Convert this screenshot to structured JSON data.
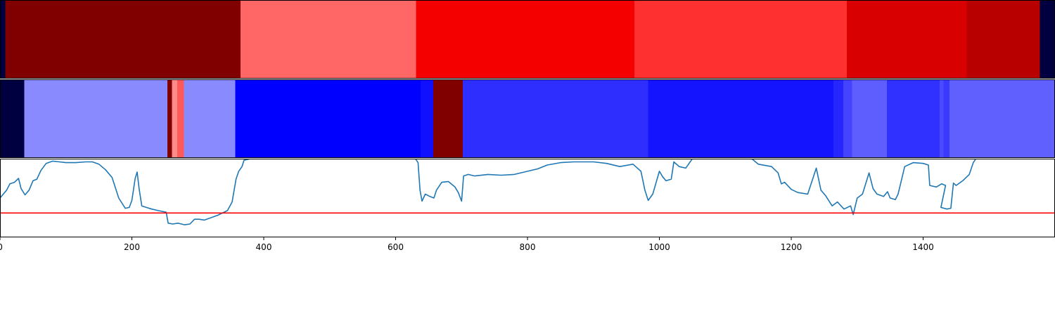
{
  "chart_data": [
    {
      "type": "heatmap",
      "xlim": [
        0,
        1600
      ],
      "segments": [
        {
          "x0": 0,
          "x1": 8,
          "color": "#000040"
        },
        {
          "x0": 8,
          "x1": 365,
          "color": "#800000"
        },
        {
          "x0": 365,
          "x1": 631,
          "color": "#ff6666"
        },
        {
          "x0": 631,
          "x1": 962,
          "color": "#f50000"
        },
        {
          "x0": 962,
          "x1": 1284,
          "color": "#ff3030"
        },
        {
          "x0": 1284,
          "x1": 1466,
          "color": "#d80000"
        },
        {
          "x0": 1466,
          "x1": 1577,
          "color": "#b80000"
        },
        {
          "x0": 1577,
          "x1": 1600,
          "color": "#000040"
        }
      ]
    },
    {
      "type": "heatmap",
      "xlim": [
        0,
        1600
      ],
      "segments": [
        {
          "x0": 0,
          "x1": 37,
          "color": "#000040"
        },
        {
          "x0": 37,
          "x1": 254,
          "color": "#8a8aff"
        },
        {
          "x0": 254,
          "x1": 261,
          "color": "#800000"
        },
        {
          "x0": 261,
          "x1": 269,
          "color": "#ff8a8a"
        },
        {
          "x0": 269,
          "x1": 279,
          "color": "#ff5a5a"
        },
        {
          "x0": 279,
          "x1": 357,
          "color": "#8a8aff"
        },
        {
          "x0": 357,
          "x1": 638,
          "color": "#0000ff"
        },
        {
          "x0": 638,
          "x1": 657,
          "color": "#1010ff"
        },
        {
          "x0": 657,
          "x1": 702,
          "color": "#800000"
        },
        {
          "x0": 702,
          "x1": 983,
          "color": "#2e2eff"
        },
        {
          "x0": 983,
          "x1": 1264,
          "color": "#1414ff"
        },
        {
          "x0": 1264,
          "x1": 1279,
          "color": "#2626ff"
        },
        {
          "x0": 1279,
          "x1": 1292,
          "color": "#4444ff"
        },
        {
          "x0": 1292,
          "x1": 1345,
          "color": "#5e5eff"
        },
        {
          "x0": 1345,
          "x1": 1425,
          "color": "#3030ff"
        },
        {
          "x0": 1425,
          "x1": 1431,
          "color": "#4a4aff"
        },
        {
          "x0": 1431,
          "x1": 1440,
          "color": "#3a3aff"
        },
        {
          "x0": 1440,
          "x1": 1600,
          "color": "#6060ff"
        }
      ]
    },
    {
      "type": "line",
      "xlim": [
        0,
        1600
      ],
      "ylim": [
        0,
        1
      ],
      "x_ticks": [
        0,
        200,
        400,
        600,
        800,
        1000,
        1200,
        1400
      ],
      "x_tick_labels": [
        "0",
        "200",
        "400",
        "600",
        "800",
        "1000",
        "1200",
        "1400"
      ],
      "threshold": {
        "y": 0.31,
        "color": "#ff0000"
      },
      "series": [
        {
          "color": "#1f77b4",
          "points": [
            [
              0,
              0.5
            ],
            [
              10,
              0.6
            ],
            [
              15,
              0.68
            ],
            [
              22,
              0.7
            ],
            [
              28,
              0.75
            ],
            [
              32,
              0.62
            ],
            [
              38,
              0.54
            ],
            [
              44,
              0.6
            ],
            [
              50,
              0.72
            ],
            [
              56,
              0.74
            ],
            [
              62,
              0.85
            ],
            [
              70,
              0.94
            ],
            [
              80,
              0.97
            ],
            [
              90,
              0.96
            ],
            [
              100,
              0.95
            ],
            [
              115,
              0.95
            ],
            [
              130,
              0.96
            ],
            [
              140,
              0.96
            ],
            [
              150,
              0.93
            ],
            [
              160,
              0.86
            ],
            [
              170,
              0.76
            ],
            [
              180,
              0.5
            ],
            [
              190,
              0.37
            ],
            [
              196,
              0.38
            ],
            [
              200,
              0.47
            ],
            [
              205,
              0.75
            ],
            [
              208,
              0.83
            ],
            [
              211,
              0.62
            ],
            [
              215,
              0.4
            ],
            [
              222,
              0.38
            ],
            [
              230,
              0.36
            ],
            [
              240,
              0.34
            ],
            [
              252,
              0.32
            ],
            [
              255,
              0.18
            ],
            [
              262,
              0.17
            ],
            [
              270,
              0.18
            ],
            [
              280,
              0.16
            ],
            [
              288,
              0.17
            ],
            [
              295,
              0.23
            ],
            [
              302,
              0.23
            ],
            [
              310,
              0.22
            ],
            [
              320,
              0.25
            ],
            [
              330,
              0.28
            ],
            [
              345,
              0.34
            ],
            [
              352,
              0.45
            ],
            [
              358,
              0.74
            ],
            [
              362,
              0.84
            ],
            [
              367,
              0.9
            ],
            [
              370,
              0.98
            ],
            [
              380,
              1.0
            ],
            [
              400,
              1.0
            ],
            [
              440,
              1.0
            ],
            [
              480,
              1.0
            ],
            [
              520,
              1.0
            ],
            [
              560,
              1.0
            ],
            [
              600,
              1.0
            ],
            [
              630,
              1.0
            ],
            [
              634,
              0.95
            ],
            [
              637,
              0.6
            ],
            [
              640,
              0.46
            ],
            [
              645,
              0.55
            ],
            [
              652,
              0.52
            ],
            [
              658,
              0.5
            ],
            [
              662,
              0.6
            ],
            [
              670,
              0.7
            ],
            [
              680,
              0.71
            ],
            [
              690,
              0.64
            ],
            [
              695,
              0.57
            ],
            [
              700,
              0.46
            ],
            [
              703,
              0.78
            ],
            [
              710,
              0.8
            ],
            [
              720,
              0.78
            ],
            [
              740,
              0.8
            ],
            [
              760,
              0.79
            ],
            [
              780,
              0.8
            ],
            [
              800,
              0.84
            ],
            [
              815,
              0.87
            ],
            [
              830,
              0.92
            ],
            [
              850,
              0.95
            ],
            [
              870,
              0.96
            ],
            [
              900,
              0.96
            ],
            [
              920,
              0.94
            ],
            [
              940,
              0.9
            ],
            [
              960,
              0.93
            ],
            [
              972,
              0.84
            ],
            [
              978,
              0.6
            ],
            [
              983,
              0.47
            ],
            [
              990,
              0.55
            ],
            [
              1000,
              0.84
            ],
            [
              1005,
              0.77
            ],
            [
              1010,
              0.72
            ],
            [
              1018,
              0.74
            ],
            [
              1022,
              0.96
            ],
            [
              1030,
              0.9
            ],
            [
              1040,
              0.88
            ],
            [
              1050,
              1.0
            ],
            [
              1080,
              1.0
            ],
            [
              1110,
              1.0
            ],
            [
              1140,
              1.0
            ],
            [
              1150,
              0.93
            ],
            [
              1170,
              0.9
            ],
            [
              1180,
              0.82
            ],
            [
              1185,
              0.68
            ],
            [
              1190,
              0.7
            ],
            [
              1200,
              0.61
            ],
            [
              1210,
              0.57
            ],
            [
              1225,
              0.55
            ],
            [
              1238,
              0.88
            ],
            [
              1245,
              0.6
            ],
            [
              1252,
              0.53
            ],
            [
              1262,
              0.4
            ],
            [
              1270,
              0.45
            ],
            [
              1280,
              0.36
            ],
            [
              1290,
              0.4
            ],
            [
              1294,
              0.29
            ],
            [
              1300,
              0.5
            ],
            [
              1308,
              0.55
            ],
            [
              1318,
              0.82
            ],
            [
              1324,
              0.62
            ],
            [
              1330,
              0.55
            ],
            [
              1340,
              0.52
            ],
            [
              1346,
              0.58
            ],
            [
              1350,
              0.5
            ],
            [
              1358,
              0.48
            ],
            [
              1362,
              0.55
            ],
            [
              1372,
              0.9
            ],
            [
              1385,
              0.95
            ],
            [
              1400,
              0.94
            ],
            [
              1408,
              0.92
            ],
            [
              1410,
              0.66
            ],
            [
              1420,
              0.64
            ],
            [
              1428,
              0.68
            ],
            [
              1434,
              0.66
            ],
            [
              1427,
              0.38
            ],
            [
              1436,
              0.36
            ],
            [
              1442,
              0.37
            ],
            [
              1446,
              0.69
            ],
            [
              1450,
              0.66
            ],
            [
              1460,
              0.72
            ],
            [
              1470,
              0.8
            ],
            [
              1476,
              0.95
            ],
            [
              1480,
              1.0
            ],
            [
              1520,
              1.0
            ],
            [
              1560,
              1.0
            ],
            [
              1600,
              1.0
            ]
          ]
        }
      ]
    }
  ]
}
